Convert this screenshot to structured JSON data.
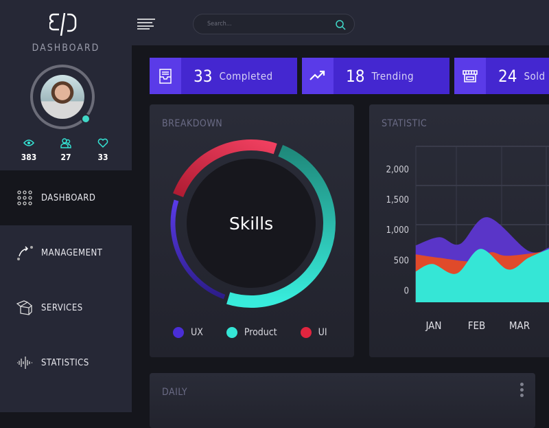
{
  "sidebar": {
    "brand": "DASHBOARD",
    "stats": [
      {
        "icon": "eye-icon",
        "value": "383"
      },
      {
        "icon": "users-icon",
        "value": "27"
      },
      {
        "icon": "heart-icon",
        "value": "33"
      }
    ],
    "nav": [
      {
        "label": "DASHBOARD",
        "icon": "grid-icon",
        "active": true
      },
      {
        "label": "MANAGEMENT",
        "icon": "route-icon"
      },
      {
        "label": "SERVICES",
        "icon": "box-icon"
      },
      {
        "label": "STATISTICS",
        "icon": "waveform-icon"
      }
    ]
  },
  "topbar": {
    "search_placeholder": "Search..."
  },
  "tiles": [
    {
      "value": "33",
      "label": "Completed",
      "icon": "inbox-icon"
    },
    {
      "value": "18",
      "label": "Trending",
      "icon": "trending-up-icon"
    },
    {
      "value": "24",
      "label": "Sold",
      "icon": "store-icon"
    }
  ],
  "breakdown": {
    "title": "BREAKDOWN",
    "center": "Skills",
    "legend": [
      {
        "label": "UX",
        "color": "#4a2ed6"
      },
      {
        "label": "Product",
        "color": "#35e6d6"
      },
      {
        "label": "UI",
        "color": "#e0253f"
      }
    ]
  },
  "statistic": {
    "title": "STATISTIC"
  },
  "daily": {
    "title": "DAILY"
  },
  "colors": {
    "accent": "#4427d0",
    "teal": "#35e6d6",
    "red": "#e0253f",
    "orange": "#e04a2a",
    "purple": "#5a35c8"
  },
  "chart_data": {
    "type": "area",
    "stacked_overlap": true,
    "categories": [
      "JAN",
      "FEB",
      "MAR"
    ],
    "yticks": [
      "0",
      "500",
      "1,000",
      "1,500",
      "2,000"
    ],
    "ylim": [
      -200,
      2375
    ],
    "grid": true,
    "series": [
      {
        "color": "#5a35c8",
        "points": [
          [
            0.58,
            739
          ],
          [
            1.13,
            875
          ],
          [
            1.61,
            761
          ],
          [
            2.25,
            1205
          ],
          [
            3.21,
            648
          ],
          [
            3.69,
            705
          ]
        ]
      },
      {
        "color": "#e04a2a",
        "points": [
          [
            0.58,
            591
          ],
          [
            1.13,
            534
          ],
          [
            1.93,
            477
          ],
          [
            2.33,
            625
          ],
          [
            2.73,
            568
          ],
          [
            3.69,
            648
          ]
        ]
      },
      {
        "color": "#35e6d6",
        "points": [
          [
            0.58,
            307
          ],
          [
            0.97,
            432
          ],
          [
            1.53,
            273
          ],
          [
            2.09,
            682
          ],
          [
            2.73,
            341
          ],
          [
            3.21,
            534
          ],
          [
            3.69,
            682
          ]
        ]
      }
    ]
  }
}
